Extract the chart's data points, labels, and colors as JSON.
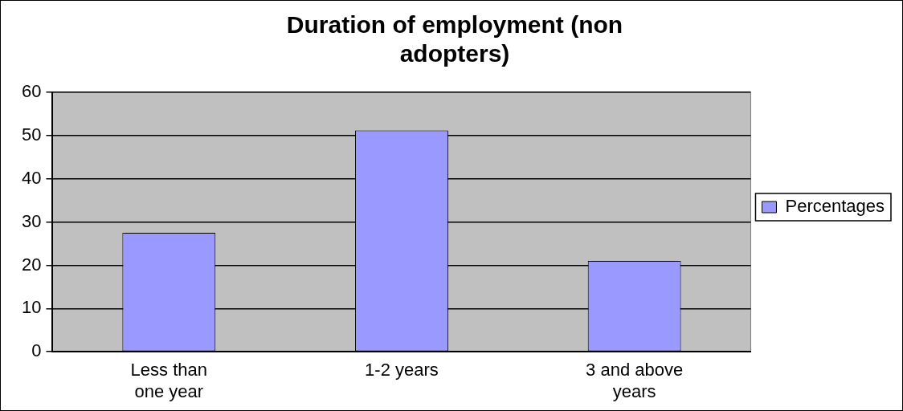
{
  "chart_data": {
    "type": "bar",
    "title": "Duration of employment (non adopters)",
    "categories": [
      "Less than one year",
      "1-2 years",
      "3 and above years"
    ],
    "series": [
      {
        "name": "Percentages",
        "color": "#9999ff",
        "values": [
          27.5,
          51.2,
          21
        ]
      }
    ],
    "ylim": [
      0,
      60
    ],
    "yticks": [
      0,
      10,
      20,
      30,
      40,
      50,
      60
    ],
    "grid": "y",
    "legend": "right"
  }
}
